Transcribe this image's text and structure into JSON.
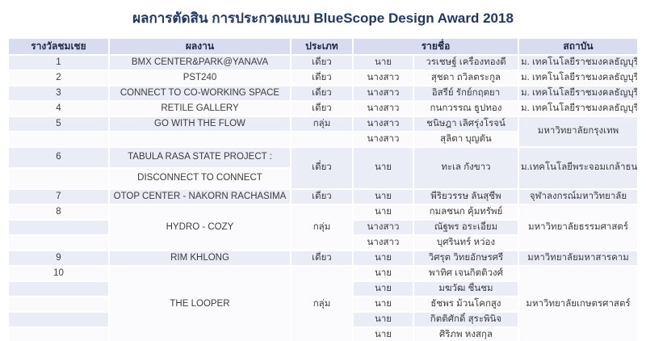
{
  "colors": {
    "title-color": "#1f3864",
    "header-bg": "#d9dcee",
    "stripe": "#eaecf6",
    "row-white": "#fbfbfd"
  },
  "title": "ผลการตัดสิน การประกวดแบบ BlueScope Design Award 2018",
  "table": {
    "headers": [
      "รางวัลชมเชย",
      "ผลงาน",
      "ประเภท",
      "รายชื่อ",
      "สถาบัน"
    ],
    "rows": [
      {
        "cells": [
          {
            "v": "1",
            "name": "award"
          },
          {
            "v": "BMX CENTER&PARK@YANAVA",
            "name": "work"
          },
          {
            "v": "เดี่ยว",
            "name": "type"
          },
          {
            "v": "นาย",
            "name": "title"
          },
          {
            "v": "วรเชษฐ์ เครื่องทองดี",
            "name": "name"
          },
          {
            "v": "ม. เทคโนโลยีราชมงคลธัญบุรี",
            "name": "institution"
          }
        ]
      },
      {
        "cells": [
          {
            "v": "2",
            "name": "award"
          },
          {
            "v": "PST240",
            "name": "work"
          },
          {
            "v": "เดี่ยว",
            "name": "type"
          },
          {
            "v": "นางสาว",
            "name": "title"
          },
          {
            "v": "สุชดา ถวิลตระกูล",
            "name": "name"
          },
          {
            "v": "ม. เทคโนโลยีราชมงคลธัญบุรี",
            "name": "institution"
          }
        ]
      },
      {
        "cells": [
          {
            "v": "3",
            "name": "award"
          },
          {
            "v": "CONNECT TO CO-WORKING SPACE",
            "name": "work"
          },
          {
            "v": "เดี่ยว",
            "name": "type"
          },
          {
            "v": "นางสาว",
            "name": "title"
          },
          {
            "v": "อิสรีย์ รักย์กฤตยา",
            "name": "name"
          },
          {
            "v": "ม. เทคโนโลยีราชมงคลธัญบุรี",
            "name": "institution"
          }
        ]
      },
      {
        "cells": [
          {
            "v": "4",
            "name": "award"
          },
          {
            "v": "RETILE GALLERY",
            "name": "work"
          },
          {
            "v": "เดี่ยว",
            "name": "type"
          },
          {
            "v": "นางสาว",
            "name": "title"
          },
          {
            "v": "กนกวรรณ ธูปทอง",
            "name": "name"
          },
          {
            "v": "ม. เทคโนโลยีราชมงคลธัญบุรี",
            "name": "institution"
          }
        ]
      },
      {
        "cells": [
          {
            "v": "5",
            "name": "award"
          },
          {
            "v": "GO WITH THE FLOW",
            "name": "work"
          },
          {
            "v": "กลุ่ม",
            "name": "type"
          },
          {
            "v": "นางสาว",
            "name": "title"
          },
          {
            "v": "ชนิษฎา เลิศรุ่งโรจน์",
            "name": "name"
          },
          {
            "v": "มหาวิทยาลัยกรุงเทพ",
            "rs": 2,
            "name": "institution"
          }
        ]
      },
      {
        "cells": [
          {
            "v": "",
            "name": "award"
          },
          {
            "v": "",
            "name": "work"
          },
          {
            "v": "",
            "name": "type"
          },
          {
            "v": "นางสาว",
            "name": "title"
          },
          {
            "v": "สุลิตา บุญตัน",
            "name": "name"
          }
        ]
      },
      {
        "h": 24,
        "cells": [
          {
            "v": "6",
            "name": "award"
          },
          {
            "v": "TABULA RASA STATE PROJECT :",
            "name": "work"
          },
          {
            "v": "เดี่ยว",
            "rs": 2,
            "name": "type"
          },
          {
            "v": "นาย",
            "rs": 2,
            "name": "title"
          },
          {
            "v": "ทะเล กังขาว",
            "rs": 2,
            "name": "name"
          },
          {
            "v": "ม.เทคโนโลยีพระจอมเกล้าธนบุรี",
            "rs": 2,
            "name": "institution"
          }
        ]
      },
      {
        "h": 24,
        "cells": [
          {
            "v": "",
            "name": "award"
          },
          {
            "v": "DISCONNECT TO CONNECT",
            "name": "work"
          }
        ]
      },
      {
        "cells": [
          {
            "v": "7",
            "name": "award"
          },
          {
            "v": "OTOP CENTER - NAKORN RACHASIMA",
            "name": "work"
          },
          {
            "v": "เดี่ยว",
            "name": "type"
          },
          {
            "v": "นาย",
            "name": "title"
          },
          {
            "v": "พีริยวรรษ ลันสุชีพ",
            "name": "name"
          },
          {
            "v": "จุฬาลงกรณ์มหาวิทยาลัย",
            "name": "institution"
          }
        ]
      },
      {
        "cells": [
          {
            "v": "8",
            "name": "award"
          },
          {
            "v": "HYDRO - COZY",
            "rs": 3,
            "name": "work"
          },
          {
            "v": "กลุ่ม",
            "rs": 3,
            "name": "type"
          },
          {
            "v": "นาย",
            "name": "title"
          },
          {
            "v": "กมลชนก คุ้มทรัพย์",
            "name": "name"
          },
          {
            "v": "มหาวิทยาลัยธรรมศาสตร์",
            "rs": 3,
            "name": "institution"
          }
        ]
      },
      {
        "cells": [
          {
            "v": "",
            "name": "award"
          },
          {
            "v": "นางสาว",
            "name": "title"
          },
          {
            "v": "ณัฐพร อระเอี่ยม",
            "name": "name"
          }
        ]
      },
      {
        "cells": [
          {
            "v": "",
            "name": "award"
          },
          {
            "v": "นางสาว",
            "name": "title"
          },
          {
            "v": "บุศรินทร์ หว่อง",
            "name": "name"
          }
        ]
      },
      {
        "cells": [
          {
            "v": "9",
            "name": "award"
          },
          {
            "v": "RIM KHLONG",
            "name": "work"
          },
          {
            "v": "เดี่ยว",
            "name": "type"
          },
          {
            "v": "นาย",
            "name": "title"
          },
          {
            "v": "วิศรุต วิทยอักษรศรี",
            "name": "name"
          },
          {
            "v": "มหาวิทยาลัยมหาสารคาม",
            "name": "institution"
          }
        ]
      },
      {
        "cells": [
          {
            "v": "10",
            "name": "award"
          },
          {
            "v": "THE LOOPER",
            "rs": 5,
            "name": "work"
          },
          {
            "v": "กลุ่ม",
            "rs": 5,
            "name": "type"
          },
          {
            "v": "นาย",
            "name": "title"
          },
          {
            "v": "พาทิศ เจนกิตติวงศ์",
            "name": "name"
          },
          {
            "v": "มหาวิทยาลัยเกษตรศาสตร์",
            "rs": 5,
            "name": "institution"
          }
        ]
      },
      {
        "cells": [
          {
            "v": "",
            "name": "award"
          },
          {
            "v": "นาย",
            "name": "title"
          },
          {
            "v": "มฆวัฒ ชื่นชม",
            "name": "name"
          }
        ]
      },
      {
        "cells": [
          {
            "v": "",
            "name": "award"
          },
          {
            "v": "นาย",
            "name": "title"
          },
          {
            "v": "ธัชพร ม้วนโคกสูง",
            "name": "name"
          }
        ]
      },
      {
        "cells": [
          {
            "v": "",
            "name": "award"
          },
          {
            "v": "นาย",
            "name": "title"
          },
          {
            "v": "กิตติศักดิ์ สุระพินิจ",
            "name": "name"
          }
        ]
      },
      {
        "cells": [
          {
            "v": "",
            "name": "award"
          },
          {
            "v": "นาย",
            "name": "title"
          },
          {
            "v": "ศิริภพ หงสกุล",
            "name": "name"
          }
        ]
      }
    ]
  }
}
